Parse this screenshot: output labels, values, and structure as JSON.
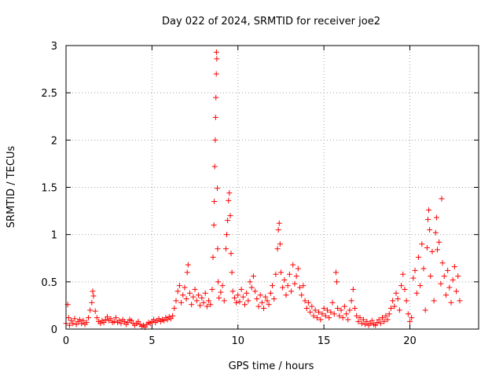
{
  "chart_data": {
    "type": "scatter",
    "title": "Day 022 of 2024, SRMTID for receiver joe2",
    "xlabel": "GPS time / hours",
    "ylabel": "SRMTID / TECUs",
    "xlim": [
      0,
      24
    ],
    "ylim": [
      0,
      3
    ],
    "xticks": [
      0,
      5,
      10,
      15,
      20
    ],
    "xtick_labels": [
      "0",
      "5",
      "10",
      "15",
      "20"
    ],
    "yticks": [
      0,
      0.5,
      1,
      1.5,
      2,
      2.5,
      3
    ],
    "ytick_labels": [
      "0",
      "0.5",
      "1",
      "1.5",
      "2",
      "2.5",
      "3"
    ],
    "grid": true,
    "marker": "+",
    "color": "#ff0000",
    "series": [
      {
        "name": "SRMTID",
        "points": [
          [
            0.0,
            0.06
          ],
          [
            0.1,
            0.26
          ],
          [
            0.15,
            0.12
          ],
          [
            0.2,
            0.04
          ],
          [
            0.3,
            0.09
          ],
          [
            0.4,
            0.06
          ],
          [
            0.5,
            0.11
          ],
          [
            0.6,
            0.05
          ],
          [
            0.7,
            0.08
          ],
          [
            0.8,
            0.1
          ],
          [
            0.9,
            0.06
          ],
          [
            1.0,
            0.09
          ],
          [
            1.1,
            0.05
          ],
          [
            1.2,
            0.07
          ],
          [
            1.3,
            0.12
          ],
          [
            1.4,
            0.2
          ],
          [
            1.5,
            0.28
          ],
          [
            1.55,
            0.4
          ],
          [
            1.6,
            0.35
          ],
          [
            1.7,
            0.19
          ],
          [
            1.8,
            0.12
          ],
          [
            1.9,
            0.08
          ],
          [
            2.0,
            0.06
          ],
          [
            2.1,
            0.09
          ],
          [
            2.2,
            0.07
          ],
          [
            2.3,
            0.1
          ],
          [
            2.4,
            0.13
          ],
          [
            2.5,
            0.09
          ],
          [
            2.6,
            0.11
          ],
          [
            2.7,
            0.07
          ],
          [
            2.8,
            0.08
          ],
          [
            2.9,
            0.12
          ],
          [
            3.0,
            0.07
          ],
          [
            3.1,
            0.09
          ],
          [
            3.2,
            0.06
          ],
          [
            3.3,
            0.1
          ],
          [
            3.4,
            0.08
          ],
          [
            3.5,
            0.05
          ],
          [
            3.6,
            0.07
          ],
          [
            3.7,
            0.1
          ],
          [
            3.8,
            0.09
          ],
          [
            3.9,
            0.06
          ],
          [
            4.0,
            0.04
          ],
          [
            4.1,
            0.06
          ],
          [
            4.2,
            0.08
          ],
          [
            4.3,
            0.05
          ],
          [
            4.4,
            0.03
          ],
          [
            4.5,
            0.04
          ],
          [
            4.6,
            0.02
          ],
          [
            4.7,
            0.05
          ],
          [
            4.8,
            0.07
          ],
          [
            4.9,
            0.06
          ],
          [
            5.0,
            0.08
          ],
          [
            5.1,
            0.1
          ],
          [
            5.2,
            0.07
          ],
          [
            5.3,
            0.09
          ],
          [
            5.4,
            0.11
          ],
          [
            5.5,
            0.08
          ],
          [
            5.6,
            0.1
          ],
          [
            5.7,
            0.09
          ],
          [
            5.8,
            0.12
          ],
          [
            5.9,
            0.1
          ],
          [
            6.0,
            0.13
          ],
          [
            6.1,
            0.11
          ],
          [
            6.2,
            0.14
          ],
          [
            6.3,
            0.22
          ],
          [
            6.4,
            0.3
          ],
          [
            6.5,
            0.4
          ],
          [
            6.6,
            0.46
          ],
          [
            6.7,
            0.28
          ],
          [
            6.8,
            0.36
          ],
          [
            6.9,
            0.44
          ],
          [
            7.0,
            0.32
          ],
          [
            7.05,
            0.6
          ],
          [
            7.1,
            0.68
          ],
          [
            7.2,
            0.38
          ],
          [
            7.3,
            0.26
          ],
          [
            7.4,
            0.34
          ],
          [
            7.5,
            0.42
          ],
          [
            7.6,
            0.3
          ],
          [
            7.7,
            0.36
          ],
          [
            7.8,
            0.25
          ],
          [
            7.9,
            0.33
          ],
          [
            8.0,
            0.28
          ],
          [
            8.1,
            0.38
          ],
          [
            8.2,
            0.24
          ],
          [
            8.3,
            0.3
          ],
          [
            8.4,
            0.26
          ],
          [
            8.5,
            0.42
          ],
          [
            8.55,
            0.76
          ],
          [
            8.6,
            1.1
          ],
          [
            8.62,
            1.35
          ],
          [
            8.65,
            1.72
          ],
          [
            8.68,
            2.0
          ],
          [
            8.7,
            2.24
          ],
          [
            8.72,
            2.45
          ],
          [
            8.74,
            2.7
          ],
          [
            8.75,
            2.93
          ],
          [
            8.77,
            2.86
          ],
          [
            8.8,
            1.49
          ],
          [
            8.82,
            0.85
          ],
          [
            8.85,
            0.5
          ],
          [
            8.9,
            0.33
          ],
          [
            9.0,
            0.39
          ],
          [
            9.1,
            0.46
          ],
          [
            9.2,
            0.3
          ],
          [
            9.3,
            0.85
          ],
          [
            9.35,
            1.0
          ],
          [
            9.4,
            1.15
          ],
          [
            9.45,
            1.36
          ],
          [
            9.5,
            1.44
          ],
          [
            9.55,
            1.2
          ],
          [
            9.6,
            0.8
          ],
          [
            9.65,
            0.6
          ],
          [
            9.7,
            0.4
          ],
          [
            9.8,
            0.33
          ],
          [
            9.9,
            0.28
          ],
          [
            10.0,
            0.36
          ],
          [
            10.1,
            0.29
          ],
          [
            10.2,
            0.42
          ],
          [
            10.3,
            0.34
          ],
          [
            10.4,
            0.26
          ],
          [
            10.5,
            0.38
          ],
          [
            10.6,
            0.3
          ],
          [
            10.7,
            0.5
          ],
          [
            10.8,
            0.44
          ],
          [
            10.9,
            0.56
          ],
          [
            11.0,
            0.4
          ],
          [
            11.1,
            0.32
          ],
          [
            11.2,
            0.24
          ],
          [
            11.3,
            0.36
          ],
          [
            11.4,
            0.28
          ],
          [
            11.5,
            0.22
          ],
          [
            11.6,
            0.34
          ],
          [
            11.7,
            0.3
          ],
          [
            11.8,
            0.26
          ],
          [
            11.9,
            0.38
          ],
          [
            12.0,
            0.46
          ],
          [
            12.1,
            0.32
          ],
          [
            12.2,
            0.58
          ],
          [
            12.3,
            0.85
          ],
          [
            12.35,
            1.05
          ],
          [
            12.4,
            1.12
          ],
          [
            12.45,
            0.9
          ],
          [
            12.5,
            0.6
          ],
          [
            12.6,
            0.44
          ],
          [
            12.7,
            0.52
          ],
          [
            12.8,
            0.36
          ],
          [
            12.9,
            0.46
          ],
          [
            13.0,
            0.58
          ],
          [
            13.1,
            0.4
          ],
          [
            13.2,
            0.68
          ],
          [
            13.3,
            0.48
          ],
          [
            13.4,
            0.56
          ],
          [
            13.5,
            0.64
          ],
          [
            13.6,
            0.44
          ],
          [
            13.7,
            0.36
          ],
          [
            13.8,
            0.46
          ],
          [
            13.9,
            0.3
          ],
          [
            14.0,
            0.22
          ],
          [
            14.1,
            0.28
          ],
          [
            14.2,
            0.18
          ],
          [
            14.3,
            0.24
          ],
          [
            14.4,
            0.14
          ],
          [
            14.5,
            0.2
          ],
          [
            14.6,
            0.12
          ],
          [
            14.7,
            0.18
          ],
          [
            14.8,
            0.1
          ],
          [
            14.9,
            0.16
          ],
          [
            15.0,
            0.22
          ],
          [
            15.1,
            0.14
          ],
          [
            15.2,
            0.2
          ],
          [
            15.3,
            0.12
          ],
          [
            15.4,
            0.18
          ],
          [
            15.5,
            0.28
          ],
          [
            15.6,
            0.16
          ],
          [
            15.7,
            0.6
          ],
          [
            15.75,
            0.5
          ],
          [
            15.8,
            0.22
          ],
          [
            15.9,
            0.14
          ],
          [
            16.0,
            0.2
          ],
          [
            16.1,
            0.12
          ],
          [
            16.2,
            0.24
          ],
          [
            16.3,
            0.16
          ],
          [
            16.4,
            0.1
          ],
          [
            16.5,
            0.2
          ],
          [
            16.6,
            0.3
          ],
          [
            16.7,
            0.42
          ],
          [
            16.8,
            0.22
          ],
          [
            16.9,
            0.14
          ],
          [
            17.0,
            0.08
          ],
          [
            17.1,
            0.12
          ],
          [
            17.2,
            0.06
          ],
          [
            17.3,
            0.1
          ],
          [
            17.4,
            0.05
          ],
          [
            17.5,
            0.08
          ],
          [
            17.6,
            0.04
          ],
          [
            17.7,
            0.06
          ],
          [
            17.8,
            0.09
          ],
          [
            17.9,
            0.05
          ],
          [
            18.0,
            0.04
          ],
          [
            18.1,
            0.07
          ],
          [
            18.2,
            0.1
          ],
          [
            18.3,
            0.06
          ],
          [
            18.4,
            0.12
          ],
          [
            18.5,
            0.08
          ],
          [
            18.6,
            0.14
          ],
          [
            18.7,
            0.1
          ],
          [
            18.8,
            0.16
          ],
          [
            18.9,
            0.22
          ],
          [
            19.0,
            0.3
          ],
          [
            19.1,
            0.24
          ],
          [
            19.2,
            0.38
          ],
          [
            19.3,
            0.32
          ],
          [
            19.4,
            0.2
          ],
          [
            19.5,
            0.46
          ],
          [
            19.6,
            0.58
          ],
          [
            19.7,
            0.42
          ],
          [
            19.8,
            0.3
          ],
          [
            19.9,
            0.16
          ],
          [
            20.0,
            0.08
          ],
          [
            20.1,
            0.12
          ],
          [
            20.2,
            0.54
          ],
          [
            20.3,
            0.62
          ],
          [
            20.4,
            0.38
          ],
          [
            20.5,
            0.76
          ],
          [
            20.6,
            0.46
          ],
          [
            20.7,
            0.9
          ],
          [
            20.8,
            0.64
          ],
          [
            20.9,
            0.2
          ],
          [
            21.0,
            0.86
          ],
          [
            21.05,
            1.16
          ],
          [
            21.1,
            1.26
          ],
          [
            21.15,
            1.05
          ],
          [
            21.2,
            0.56
          ],
          [
            21.3,
            0.82
          ],
          [
            21.4,
            0.3
          ],
          [
            21.5,
            1.02
          ],
          [
            21.55,
            1.18
          ],
          [
            21.6,
            0.84
          ],
          [
            21.7,
            0.92
          ],
          [
            21.8,
            0.48
          ],
          [
            21.85,
            1.38
          ],
          [
            21.9,
            0.7
          ],
          [
            22.0,
            0.56
          ],
          [
            22.1,
            0.36
          ],
          [
            22.2,
            0.62
          ],
          [
            22.3,
            0.44
          ],
          [
            22.4,
            0.28
          ],
          [
            22.5,
            0.52
          ],
          [
            22.6,
            0.66
          ],
          [
            22.7,
            0.4
          ],
          [
            22.8,
            0.56
          ],
          [
            22.9,
            0.3
          ]
        ]
      }
    ]
  }
}
